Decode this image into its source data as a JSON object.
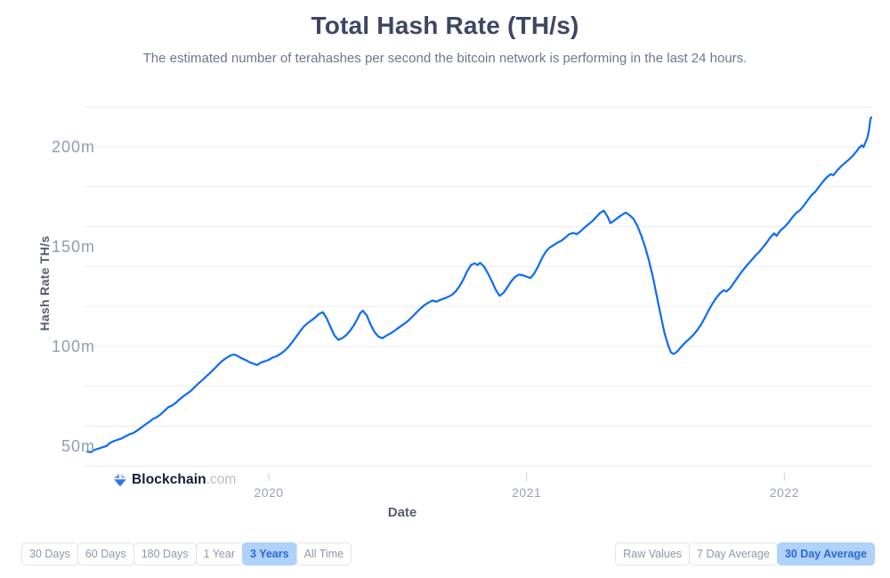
{
  "header": {
    "title": "Total Hash Rate (TH/s)",
    "subtitle": "The estimated number of terahashes per second the bitcoin network is performing in the last 24 hours."
  },
  "branding": {
    "name": "Blockchain",
    "suffix": ".com"
  },
  "colors": {
    "line": "#0c6cf2",
    "grid": "#e7eaf1",
    "axis_tick": "#c9cfda",
    "selected_button_bg": "#b0d1f9",
    "selected_button_text": "#2a68d6",
    "button_text": "#8d96aa",
    "button_border": "#e0e4ec",
    "title_text": "#3d4663",
    "subtitle_text": "#6c7792",
    "tick_label_text": "#929cb0",
    "axis_title_text": "#565d6f",
    "logo_dark": "#101c33",
    "logo_gray": "#b7bdc9"
  },
  "chart_data": {
    "type": "line",
    "title": "Total Hash Rate (TH/s)",
    "xlabel": "Date",
    "ylabel": "Hash Rate TH/s",
    "unit": "m (millions of TH/s)",
    "grid": true,
    "legend": "none",
    "x_domain": [
      2019.296,
      2022.337
    ],
    "y_gridlines": [
      40,
      60,
      80,
      100,
      120,
      140,
      160,
      180,
      200,
      220
    ],
    "y_ticks": [
      {
        "value": 50,
        "label": "50m"
      },
      {
        "value": 100,
        "label": "100m"
      },
      {
        "value": 150,
        "label": "150m"
      },
      {
        "value": 200,
        "label": "200m"
      }
    ],
    "x_ticks": [
      {
        "value": 2020,
        "label": "2020"
      },
      {
        "value": 2021,
        "label": "2021"
      },
      {
        "value": 2022,
        "label": "2022"
      }
    ],
    "series": [
      {
        "name": "30 Day Average Hash Rate",
        "points": [
          [
            2019.296,
            47.3
          ],
          [
            2019.31,
            47.0
          ],
          [
            2019.325,
            48.2
          ],
          [
            2019.34,
            48.8
          ],
          [
            2019.355,
            49.5
          ],
          [
            2019.37,
            50.0
          ],
          [
            2019.385,
            51.8
          ],
          [
            2019.4,
            52.6
          ],
          [
            2019.415,
            53.3
          ],
          [
            2019.43,
            53.9
          ],
          [
            2019.445,
            55.0
          ],
          [
            2019.46,
            56.0
          ],
          [
            2019.475,
            56.6
          ],
          [
            2019.49,
            57.9
          ],
          [
            2019.505,
            59.3
          ],
          [
            2019.52,
            60.8
          ],
          [
            2019.535,
            62.0
          ],
          [
            2019.55,
            63.6
          ],
          [
            2019.565,
            64.5
          ],
          [
            2019.58,
            65.9
          ],
          [
            2019.595,
            67.7
          ],
          [
            2019.61,
            69.5
          ],
          [
            2019.625,
            70.4
          ],
          [
            2019.64,
            71.8
          ],
          [
            2019.655,
            73.6
          ],
          [
            2019.67,
            75.2
          ],
          [
            2019.685,
            76.5
          ],
          [
            2019.7,
            78.0
          ],
          [
            2019.715,
            79.9
          ],
          [
            2019.73,
            81.8
          ],
          [
            2019.745,
            83.4
          ],
          [
            2019.76,
            85.3
          ],
          [
            2019.775,
            87.0
          ],
          [
            2019.79,
            89.0
          ],
          [
            2019.805,
            91.0
          ],
          [
            2019.82,
            92.8
          ],
          [
            2019.835,
            94.2
          ],
          [
            2019.85,
            95.4
          ],
          [
            2019.865,
            96.0
          ],
          [
            2019.88,
            95.2
          ],
          [
            2019.895,
            94.0
          ],
          [
            2019.91,
            93.2
          ],
          [
            2019.925,
            92.1
          ],
          [
            2019.94,
            91.4
          ],
          [
            2019.955,
            90.7
          ],
          [
            2019.97,
            91.9
          ],
          [
            2019.985,
            92.6
          ],
          [
            2020.0,
            93.3
          ],
          [
            2020.015,
            94.4
          ],
          [
            2020.03,
            95.1
          ],
          [
            2020.045,
            96.2
          ],
          [
            2020.06,
            97.7
          ],
          [
            2020.075,
            99.6
          ],
          [
            2020.09,
            102.0
          ],
          [
            2020.105,
            104.6
          ],
          [
            2020.12,
            107.3
          ],
          [
            2020.135,
            109.8
          ],
          [
            2020.15,
            111.6
          ],
          [
            2020.165,
            113.0
          ],
          [
            2020.18,
            114.5
          ],
          [
            2020.195,
            116.3
          ],
          [
            2020.21,
            117.2
          ],
          [
            2020.225,
            114.0
          ],
          [
            2020.24,
            109.6
          ],
          [
            2020.255,
            105.4
          ],
          [
            2020.27,
            103.3
          ],
          [
            2020.285,
            104.2
          ],
          [
            2020.3,
            105.6
          ],
          [
            2020.315,
            107.8
          ],
          [
            2020.33,
            110.6
          ],
          [
            2020.345,
            114.0
          ],
          [
            2020.355,
            116.8
          ],
          [
            2020.365,
            117.9
          ],
          [
            2020.38,
            115.6
          ],
          [
            2020.395,
            111.0
          ],
          [
            2020.41,
            107.2
          ],
          [
            2020.425,
            105.0
          ],
          [
            2020.44,
            104.1
          ],
          [
            2020.455,
            105.3
          ],
          [
            2020.47,
            106.4
          ],
          [
            2020.485,
            107.6
          ],
          [
            2020.5,
            109.0
          ],
          [
            2020.515,
            110.4
          ],
          [
            2020.53,
            111.8
          ],
          [
            2020.545,
            113.4
          ],
          [
            2020.56,
            115.3
          ],
          [
            2020.575,
            117.3
          ],
          [
            2020.59,
            119.2
          ],
          [
            2020.605,
            120.8
          ],
          [
            2020.62,
            122.0
          ],
          [
            2020.635,
            123.1
          ],
          [
            2020.65,
            122.4
          ],
          [
            2020.665,
            123.3
          ],
          [
            2020.68,
            124.0
          ],
          [
            2020.695,
            124.8
          ],
          [
            2020.71,
            125.8
          ],
          [
            2020.725,
            127.6
          ],
          [
            2020.74,
            130.2
          ],
          [
            2020.755,
            133.6
          ],
          [
            2020.77,
            137.8
          ],
          [
            2020.785,
            140.9
          ],
          [
            2020.8,
            141.7
          ],
          [
            2020.81,
            140.8
          ],
          [
            2020.82,
            141.9
          ],
          [
            2020.835,
            140.0
          ],
          [
            2020.85,
            136.7
          ],
          [
            2020.865,
            132.8
          ],
          [
            2020.88,
            128.5
          ],
          [
            2020.895,
            125.4
          ],
          [
            2020.91,
            126.8
          ],
          [
            2020.925,
            129.6
          ],
          [
            2020.94,
            132.6
          ],
          [
            2020.955,
            134.8
          ],
          [
            2020.97,
            136.0
          ],
          [
            2020.985,
            135.7
          ],
          [
            2021.0,
            135.0
          ],
          [
            2021.015,
            134.3
          ],
          [
            2021.03,
            136.6
          ],
          [
            2021.045,
            140.2
          ],
          [
            2021.06,
            144.3
          ],
          [
            2021.075,
            147.6
          ],
          [
            2021.09,
            149.6
          ],
          [
            2021.105,
            150.8
          ],
          [
            2021.12,
            152.0
          ],
          [
            2021.135,
            153.0
          ],
          [
            2021.15,
            154.5
          ],
          [
            2021.165,
            156.2
          ],
          [
            2021.18,
            156.9
          ],
          [
            2021.195,
            156.3
          ],
          [
            2021.21,
            157.8
          ],
          [
            2021.225,
            159.6
          ],
          [
            2021.24,
            161.2
          ],
          [
            2021.255,
            162.8
          ],
          [
            2021.27,
            164.8
          ],
          [
            2021.285,
            166.9
          ],
          [
            2021.3,
            168.1
          ],
          [
            2021.315,
            164.9
          ],
          [
            2021.325,
            161.8
          ],
          [
            2021.34,
            163.1
          ],
          [
            2021.355,
            164.6
          ],
          [
            2021.37,
            166.0
          ],
          [
            2021.385,
            167.1
          ],
          [
            2021.4,
            165.8
          ],
          [
            2021.415,
            163.9
          ],
          [
            2021.43,
            160.4
          ],
          [
            2021.445,
            155.6
          ],
          [
            2021.46,
            149.8
          ],
          [
            2021.475,
            143.0
          ],
          [
            2021.49,
            134.8
          ],
          [
            2021.505,
            125.4
          ],
          [
            2021.52,
            115.8
          ],
          [
            2021.535,
            106.8
          ],
          [
            2021.55,
            100.2
          ],
          [
            2021.56,
            97.0
          ],
          [
            2021.57,
            96.2
          ],
          [
            2021.585,
            97.5
          ],
          [
            2021.6,
            99.8
          ],
          [
            2021.615,
            101.9
          ],
          [
            2021.63,
            103.6
          ],
          [
            2021.645,
            105.5
          ],
          [
            2021.66,
            107.8
          ],
          [
            2021.675,
            110.6
          ],
          [
            2021.69,
            114.0
          ],
          [
            2021.705,
            117.8
          ],
          [
            2021.72,
            121.2
          ],
          [
            2021.735,
            124.2
          ],
          [
            2021.75,
            126.6
          ],
          [
            2021.765,
            128.2
          ],
          [
            2021.775,
            127.5
          ],
          [
            2021.79,
            129.3
          ],
          [
            2021.805,
            132.0
          ],
          [
            2021.82,
            134.8
          ],
          [
            2021.835,
            137.5
          ],
          [
            2021.85,
            139.9
          ],
          [
            2021.865,
            142.2
          ],
          [
            2021.88,
            144.3
          ],
          [
            2021.89,
            145.9
          ],
          [
            2021.9,
            147.0
          ],
          [
            2021.915,
            149.4
          ],
          [
            2021.93,
            151.8
          ],
          [
            2021.945,
            154.6
          ],
          [
            2021.96,
            156.7
          ],
          [
            2021.97,
            155.4
          ],
          [
            2021.985,
            158.2
          ],
          [
            2022.0,
            159.8
          ],
          [
            2022.015,
            161.9
          ],
          [
            2022.03,
            164.5
          ],
          [
            2022.045,
            166.8
          ],
          [
            2022.06,
            168.2
          ],
          [
            2022.075,
            170.5
          ],
          [
            2022.09,
            173.2
          ],
          [
            2022.105,
            175.7
          ],
          [
            2022.12,
            177.6
          ],
          [
            2022.135,
            180.1
          ],
          [
            2022.15,
            182.6
          ],
          [
            2022.165,
            184.8
          ],
          [
            2022.18,
            186.4
          ],
          [
            2022.19,
            185.8
          ],
          [
            2022.205,
            188.2
          ],
          [
            2022.22,
            190.3
          ],
          [
            2022.235,
            192.0
          ],
          [
            2022.25,
            193.6
          ],
          [
            2022.265,
            195.5
          ],
          [
            2022.28,
            197.8
          ],
          [
            2022.29,
            199.6
          ],
          [
            2022.3,
            200.8
          ],
          [
            2022.307,
            199.9
          ],
          [
            2022.315,
            202.3
          ],
          [
            2022.322,
            204.6
          ],
          [
            2022.328,
            208.2
          ],
          [
            2022.334,
            213.9
          ],
          [
            2022.337,
            214.8
          ]
        ]
      }
    ]
  },
  "controls": {
    "range_buttons": [
      {
        "label": "30 Days",
        "selected": false
      },
      {
        "label": "60 Days",
        "selected": false
      },
      {
        "label": "180 Days",
        "selected": false
      },
      {
        "label": "1 Year",
        "selected": false
      },
      {
        "label": "3 Years",
        "selected": true
      },
      {
        "label": "All Time",
        "selected": false
      }
    ],
    "average_buttons": [
      {
        "label": "Raw Values",
        "selected": false
      },
      {
        "label": "7 Day Average",
        "selected": false
      },
      {
        "label": "30 Day Average",
        "selected": true
      }
    ]
  }
}
